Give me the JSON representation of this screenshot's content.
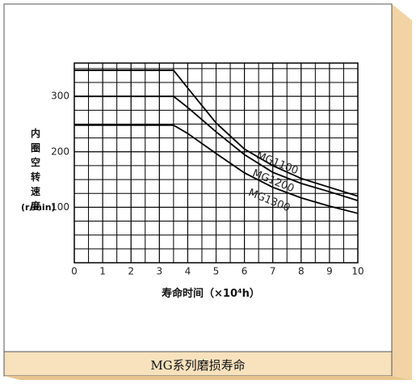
{
  "chart_data": {
    "type": "line",
    "ylabel": "内圈空转速度",
    "yunit": "(r/min)",
    "xlabel": "寿命时间（×10⁴h）",
    "caption": "MG系列磨损寿命",
    "x": [
      0,
      3.5,
      4,
      5,
      6,
      7,
      8,
      9,
      10
    ],
    "series": [
      {
        "name": "MG1100",
        "color": "#000000",
        "values": [
          347,
          347,
          315,
          252,
          205,
          175,
          152,
          136,
          120
        ]
      },
      {
        "name": "MG1200",
        "color": "#000000",
        "values": [
          300,
          300,
          280,
          236,
          195,
          163,
          143,
          128,
          112
        ]
      },
      {
        "name": "MG1300",
        "color": "#000000",
        "values": [
          248,
          248,
          233,
          197,
          162,
          136,
          117,
          102,
          89
        ]
      }
    ],
    "xlim": [
      0,
      10
    ],
    "xticks": [
      0,
      1,
      2,
      3,
      4,
      5,
      6,
      7,
      8,
      9,
      10
    ],
    "ylim": [
      0,
      360
    ],
    "yticks": [
      100,
      200,
      300
    ],
    "grid": true
  }
}
